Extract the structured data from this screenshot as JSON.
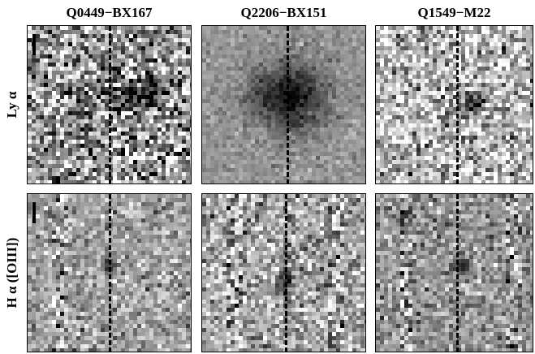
{
  "figure": {
    "columns": [
      {
        "title": "Q0449−BX167"
      },
      {
        "title": "Q2206−BX151"
      },
      {
        "title": "Q1549−M22"
      }
    ],
    "rows": [
      {
        "label": "Ly α"
      },
      {
        "label": "H α  ([OIII])"
      }
    ],
    "colormap": "grayscale-inverted",
    "dashed_slit_line": true
  }
}
